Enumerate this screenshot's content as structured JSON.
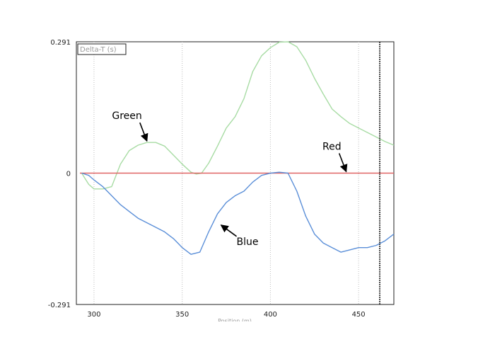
{
  "chart_data": {
    "type": "line",
    "ylabel": "Delta-T (s)",
    "xlabel": "Position (m)",
    "xlim": [
      290,
      470
    ],
    "ylim": [
      -0.291,
      0.291
    ],
    "x_ticks": [
      300,
      350,
      400,
      450
    ],
    "y_ticks": [
      {
        "value": 0.291,
        "label": "0.291"
      },
      {
        "value": 0,
        "label": "0"
      },
      {
        "value": -0.291,
        "label": "-0.291"
      }
    ],
    "grid": {
      "vertical": true,
      "horizontal": false
    },
    "cursor_x": 462,
    "series": [
      {
        "color": "#a8dca4",
        "x": [
          293,
          297,
          300,
          305,
          310,
          315,
          320,
          325,
          330,
          335,
          340,
          345,
          350,
          355,
          358,
          361,
          365,
          370,
          375,
          380,
          385,
          390,
          395,
          400,
          405,
          410,
          415,
          420,
          425,
          430,
          435,
          440,
          445,
          450,
          455,
          460,
          465,
          470
        ],
        "y": [
          0.0,
          -0.025,
          -0.035,
          -0.035,
          -0.03,
          0.02,
          0.05,
          0.062,
          0.068,
          0.068,
          0.06,
          0.04,
          0.02,
          0.002,
          -0.002,
          0.0,
          0.022,
          0.06,
          0.1,
          0.125,
          0.165,
          0.225,
          0.26,
          0.278,
          0.29,
          0.291,
          0.28,
          0.25,
          0.21,
          0.175,
          0.142,
          0.125,
          0.11,
          0.1,
          0.09,
          0.08,
          0.07,
          0.062
        ]
      },
      {
        "color": "#e06464",
        "x": [
          292,
          470
        ],
        "y": [
          0.0,
          0.0
        ]
      },
      {
        "color": "#5b8fd8",
        "x": [
          293,
          297,
          300,
          305,
          310,
          315,
          320,
          325,
          330,
          335,
          340,
          345,
          350,
          355,
          360,
          365,
          370,
          375,
          380,
          385,
          390,
          395,
          400,
          405,
          410,
          415,
          420,
          425,
          430,
          435,
          440,
          445,
          450,
          455,
          460,
          465,
          470
        ],
        "y": [
          0.0,
          -0.005,
          -0.015,
          -0.03,
          -0.05,
          -0.07,
          -0.085,
          -0.1,
          -0.11,
          -0.12,
          -0.13,
          -0.145,
          -0.165,
          -0.18,
          -0.175,
          -0.13,
          -0.09,
          -0.065,
          -0.05,
          -0.04,
          -0.02,
          -0.005,
          0.0,
          0.002,
          0.0,
          -0.04,
          -0.095,
          -0.135,
          -0.155,
          -0.165,
          -0.175,
          -0.17,
          -0.165,
          -0.165,
          -0.16,
          -0.15,
          -0.135
        ]
      }
    ],
    "annotations": [
      {
        "text": "Green",
        "target_x": 330,
        "target_y": 0.068,
        "side": "upper-left"
      },
      {
        "text": "Red",
        "target_x": 443,
        "target_y": 0.0,
        "side": "upper-left"
      },
      {
        "text": "Blue",
        "target_x": 372,
        "target_y": -0.115,
        "side": "lower-right"
      }
    ]
  }
}
